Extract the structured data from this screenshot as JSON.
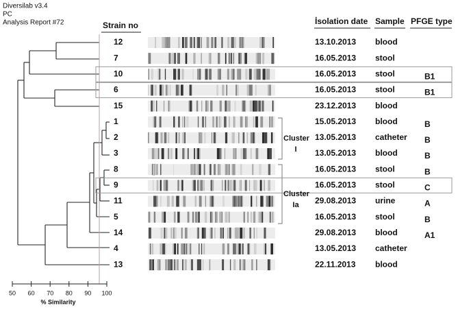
{
  "header": {
    "lines": [
      "Diversilab v3.4",
      "PC",
      "Analysis Report #72"
    ]
  },
  "columns": {
    "strain": "Strain no",
    "date": "İsolation date",
    "sample": "Sample",
    "pfge": "PFGE type"
  },
  "rows": [
    {
      "strain": "12",
      "date": "13.10.2013",
      "sample": "blood"
    },
    {
      "strain": "7",
      "date": "16.05.2013",
      "sample": "stool"
    },
    {
      "strain": "10",
      "date": "16.05.2013",
      "sample": "stool",
      "pfge": "B1"
    },
    {
      "strain": "6",
      "date": "16.05.2013",
      "sample": "stool",
      "pfge": "B1"
    },
    {
      "strain": "15",
      "date": "23.12.2013",
      "sample": "blood"
    },
    {
      "strain": "1",
      "date": "15.05.2013",
      "sample": "blood",
      "pfge": "B"
    },
    {
      "strain": "2",
      "date": "13.05.2013",
      "sample": "catheter",
      "pfge": "B"
    },
    {
      "strain": "3",
      "date": "13.05.2013",
      "sample": "blood",
      "pfge": "B"
    },
    {
      "strain": "8",
      "date": "16.05.2013",
      "sample": "stool",
      "pfge": "B"
    },
    {
      "strain": "9",
      "date": "16.05.2013",
      "sample": "stool",
      "pfge": "C"
    },
    {
      "strain": "11",
      "date": "29.08.2013",
      "sample": "urine",
      "pfge": "A"
    },
    {
      "strain": "5",
      "date": "16.05.2013",
      "sample": "stool",
      "pfge": "B"
    },
    {
      "strain": "14",
      "date": "29.08.2013",
      "sample": "blood",
      "pfge": "A1"
    },
    {
      "strain": "4",
      "date": "13.05.2013",
      "sample": "catheter"
    },
    {
      "strain": "13",
      "date": "22.11.2013",
      "sample": "blood"
    }
  ],
  "clusters": [
    {
      "name": "Cluster",
      "id": "I"
    },
    {
      "name": "Cluster",
      "id": "Ia"
    }
  ],
  "axis": {
    "label": "% Similarity",
    "ticks": [
      50,
      60,
      70,
      80,
      90,
      100
    ]
  }
}
